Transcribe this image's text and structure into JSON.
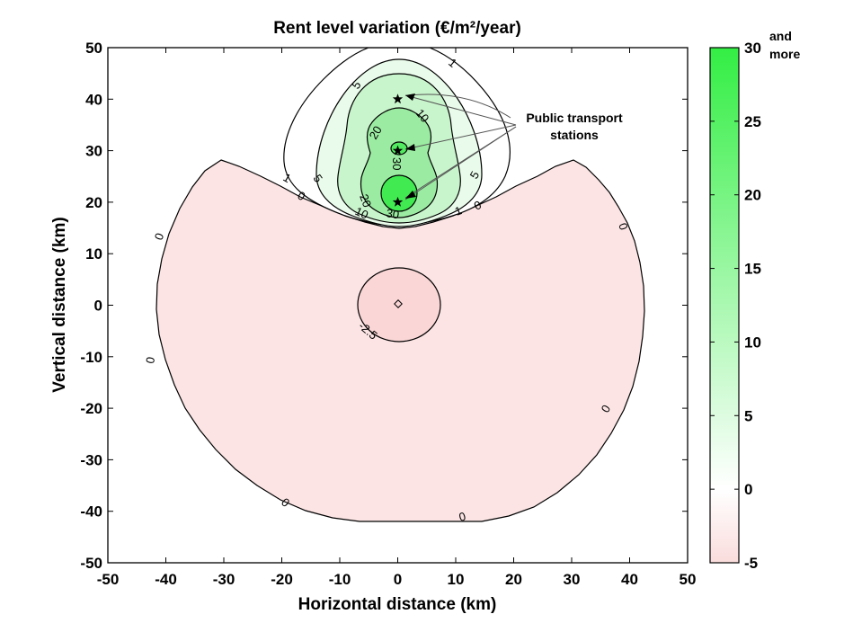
{
  "chart_data": {
    "type": "contour",
    "title": "Rent level variation (€/m²/year)",
    "xlabel": "Horizontal distance (km)",
    "ylabel": "Vertical distance (km)",
    "xlim": [
      -50,
      50
    ],
    "ylim": [
      -50,
      50
    ],
    "xticks": [
      "-50",
      "-40",
      "-30",
      "-20",
      "-10",
      "0",
      "10",
      "20",
      "30",
      "40",
      "50"
    ],
    "yticks": [
      "-50",
      "-40",
      "-30",
      "-20",
      "-10",
      "0",
      "10",
      "20",
      "30",
      "40",
      "50"
    ],
    "colorbar": {
      "range": [
        -5,
        30
      ],
      "ticks": [
        "-5",
        "0",
        "5",
        "10",
        "15",
        "20",
        "25",
        "30"
      ],
      "max_note_line1": "and",
      "max_note_line2": "more",
      "colors": {
        "negative": "#fce3e3",
        "zero": "#ffffff",
        "positive_max": "#33ee44"
      }
    },
    "stations": [
      {
        "x": 0,
        "y": 40
      },
      {
        "x": 0,
        "y": 30
      },
      {
        "x": 0,
        "y": 20
      }
    ],
    "annotation": {
      "line1": "Public transport",
      "line2": "stations"
    },
    "contour_labels": {
      "c1a": "1",
      "c1b": "1",
      "c1c": "1",
      "c5a": "5",
      "c5b": "5",
      "c5c": "5",
      "c10a": "10",
      "c10b": "10",
      "c20a": "20",
      "c20b": "20",
      "c30a": "30",
      "c30b": "30",
      "c0a": "0",
      "c0b": "0",
      "c0c": "0",
      "c0d": "0",
      "c0e": "0",
      "c0f": "0",
      "c0g": "0",
      "cm25": "-2.5"
    }
  }
}
